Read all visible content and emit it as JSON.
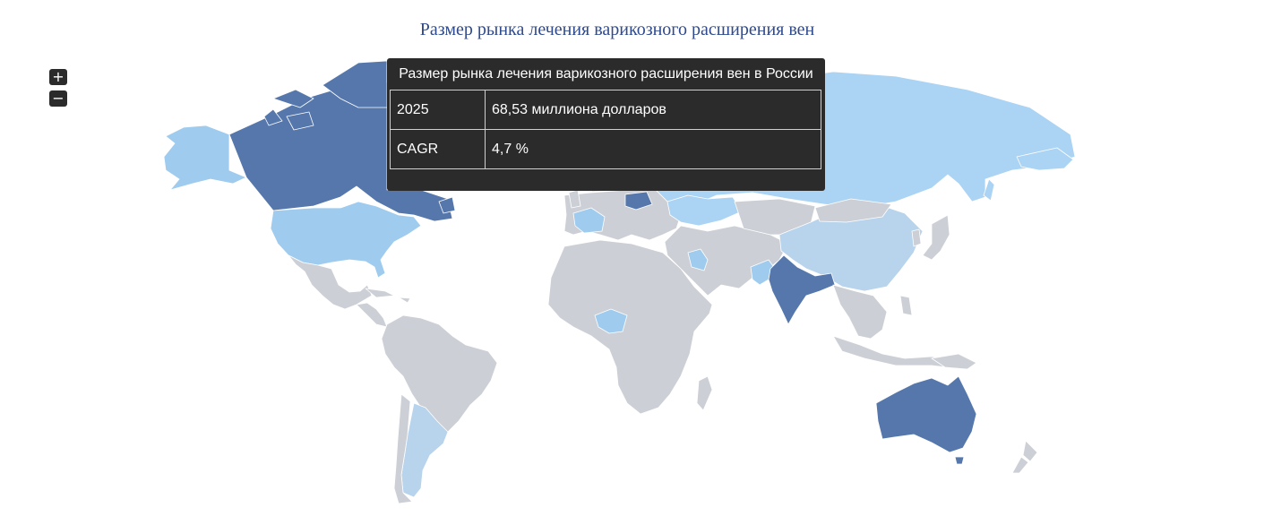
{
  "title": "Размер рынка лечения варикозного расширения вен",
  "zoom": {
    "in_label": "+",
    "out_label": "−"
  },
  "tooltip": {
    "title": "Размер рынка лечения варикозного расширения вен в России",
    "rows": [
      {
        "key": "2025",
        "value": "68,53 миллиона долларов"
      },
      {
        "key": "CAGR",
        "value": "4,7 %"
      }
    ]
  },
  "colors": {
    "dark": "#5577ab",
    "medium": "#9ecbee",
    "light": "#b7d4ec",
    "lighter": "#abd3f3",
    "gray": "#cccfd5"
  }
}
